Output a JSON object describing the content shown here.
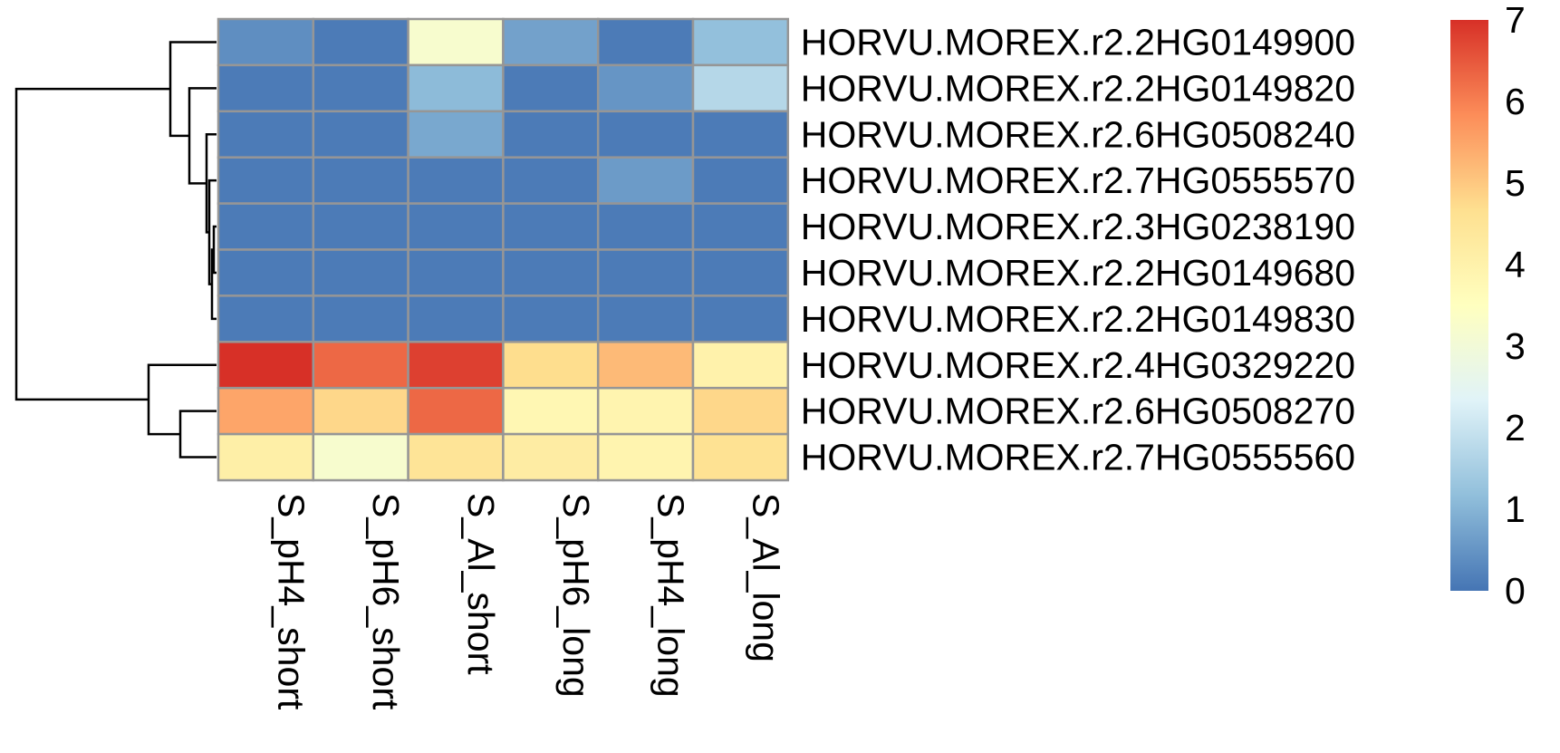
{
  "chart_data": {
    "type": "heatmap",
    "title": "",
    "xlabel": "",
    "ylabel": "",
    "columns": [
      "S_pH4_short",
      "S_pH6_short",
      "S_Al_short",
      "S_pH6_long",
      "S_pH4_long",
      "S_Al_long"
    ],
    "rows": [
      "HORVU.MOREX.r2.2HG0149900",
      "HORVU.MOREX.r2.2HG0149820",
      "HORVU.MOREX.r2.6HG0508240",
      "HORVU.MOREX.r2.7HG0555570",
      "HORVU.MOREX.r2.3HG0238190",
      "HORVU.MOREX.r2.2HG0149680",
      "HORVU.MOREX.r2.2HG0149830",
      "HORVU.MOREX.r2.4HG0329220",
      "HORVU.MOREX.r2.6HG0508270",
      "HORVU.MOREX.r2.7HG0555560"
    ],
    "values": [
      [
        0.4,
        0.1,
        3.2,
        0.7,
        0.1,
        1.2
      ],
      [
        0.1,
        0.1,
        1.1,
        0.1,
        0.5,
        1.7
      ],
      [
        0.1,
        0.1,
        0.8,
        0.1,
        0.1,
        0.1
      ],
      [
        0.1,
        0.1,
        0.1,
        0.1,
        0.6,
        0.1
      ],
      [
        0.1,
        0.1,
        0.1,
        0.1,
        0.1,
        0.1
      ],
      [
        0.1,
        0.1,
        0.1,
        0.1,
        0.1,
        0.1
      ],
      [
        0.1,
        0.1,
        0.1,
        0.1,
        0.1,
        0.1
      ],
      [
        7.0,
        6.3,
        6.8,
        4.7,
        5.2,
        4.0
      ],
      [
        5.5,
        4.8,
        6.3,
        3.8,
        3.9,
        4.8
      ],
      [
        4.1,
        3.2,
        4.5,
        4.2,
        3.9,
        4.6
      ]
    ],
    "color_scale": {
      "min": 0,
      "max": 7,
      "ticks": [
        "0",
        "1",
        "2",
        "3",
        "4",
        "5",
        "6",
        "7"
      ],
      "colors": [
        "#4575B4",
        "#91BFDB",
        "#E0F3F8",
        "#FFFFBF",
        "#FEE090",
        "#FC8D59",
        "#D73027"
      ]
    },
    "cell_border_color": "#969696",
    "row_dendrogram": true,
    "legend_position": "right"
  }
}
